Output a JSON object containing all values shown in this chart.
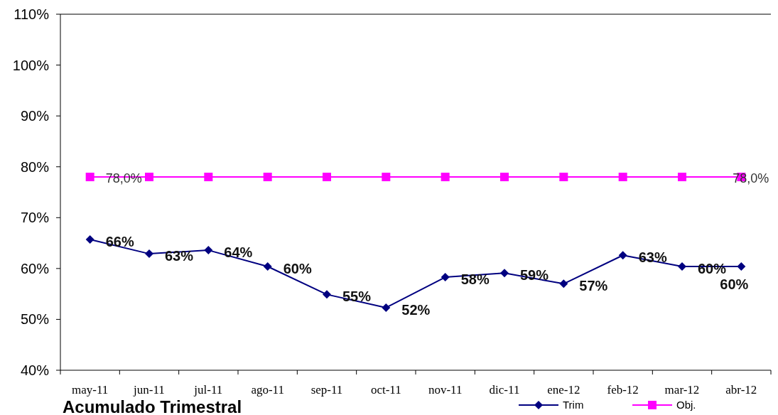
{
  "chart_data": {
    "type": "line",
    "title": "Acumulado Trimestral",
    "categories": [
      "may-11",
      "jun-11",
      "jul-11",
      "ago-11",
      "sep-11",
      "oct-11",
      "nov-11",
      "dic-11",
      "ene-12",
      "feb-12",
      "mar-12",
      "abr-12"
    ],
    "series": [
      {
        "name": "Trim",
        "color": "#000080",
        "marker": "diamond",
        "values": [
          65.7,
          62.9,
          63.6,
          60.4,
          54.9,
          52.3,
          58.3,
          59.1,
          57.0,
          62.6,
          60.4,
          60.4
        ],
        "value_labels": [
          "66%",
          "63%",
          "64%",
          "60%",
          "55%",
          "52%",
          "58%",
          "59%",
          "57%",
          "63%",
          "60%",
          "60%"
        ]
      },
      {
        "name": "Obj.",
        "color": "#ff00ff",
        "marker": "square",
        "values": [
          78,
          78,
          78,
          78,
          78,
          78,
          78,
          78,
          78,
          78,
          78,
          78
        ],
        "value_labels": [
          "78,0%",
          null,
          null,
          null,
          null,
          null,
          null,
          null,
          null,
          null,
          null,
          "78,0%"
        ]
      }
    ],
    "ylim": [
      40,
      110
    ],
    "yticks": [
      {
        "value": 40,
        "label": "40%"
      },
      {
        "value": 50,
        "label": "50%"
      },
      {
        "value": 60,
        "label": "60%"
      },
      {
        "value": 70,
        "label": "70%"
      },
      {
        "value": 80,
        "label": "80%"
      },
      {
        "value": 90,
        "label": "90%"
      },
      {
        "value": 100,
        "label": "100%"
      },
      {
        "value": 110,
        "label": "110%"
      }
    ],
    "grid": false,
    "legend": "bottom right"
  }
}
